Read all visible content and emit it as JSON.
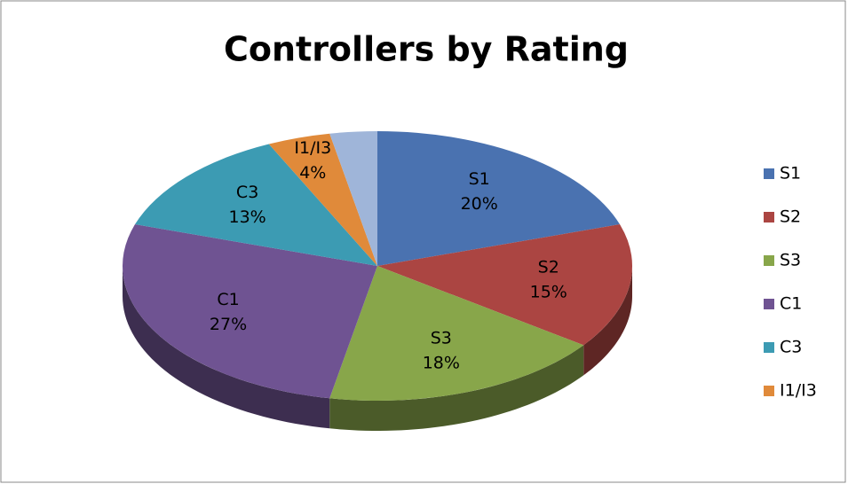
{
  "chart_data": {
    "type": "pie",
    "title": "Controllers by Rating",
    "categories": [
      "S1",
      "S2",
      "S3",
      "C1",
      "C3",
      "I1/I3",
      null
    ],
    "values": [
      20,
      15,
      18,
      27,
      13,
      4,
      3
    ],
    "value_labels": [
      "20%",
      "15%",
      "18%",
      "27%",
      "13%",
      "4%",
      null
    ],
    "colors": [
      "#4a72b0",
      "#ab4542",
      "#88a64a",
      "#6f5392",
      "#3c9bb3",
      "#e08a3a",
      "#9fb5d9"
    ],
    "legend": "right"
  }
}
